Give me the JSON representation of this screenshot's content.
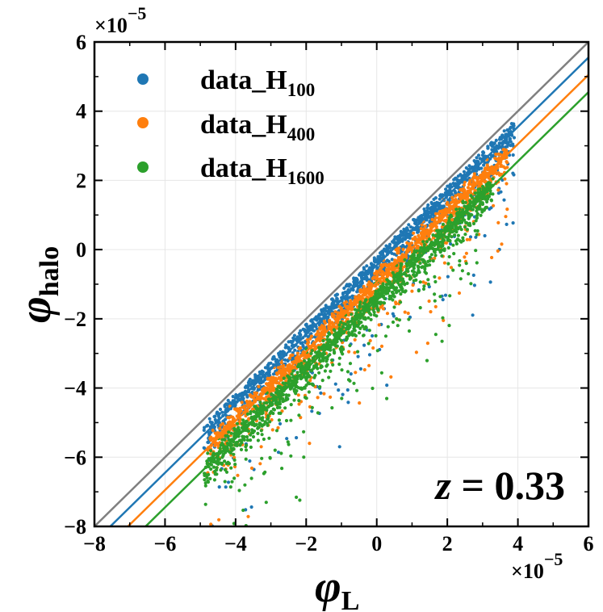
{
  "chart_data": {
    "type": "scatter",
    "title": "",
    "xlabel": {
      "symbol": "φ",
      "sub": "L"
    },
    "ylabel": {
      "symbol": "φ",
      "sub": "halo"
    },
    "xlim": [
      -8,
      6
    ],
    "ylim": [
      -8,
      6
    ],
    "xticks": [
      -8,
      -6,
      -4,
      -2,
      0,
      2,
      4,
      6
    ],
    "yticks": [
      -8,
      -6,
      -4,
      -2,
      0,
      2,
      4,
      6
    ],
    "xtick_labels": [
      "−8",
      "−6",
      "−4",
      "−2",
      "0",
      "2",
      "4",
      "6"
    ],
    "ytick_labels": [
      "−8",
      "−6",
      "−4",
      "−2",
      "0",
      "2",
      "4",
      "6"
    ],
    "x_scale_label": {
      "base": "×10",
      "exp": "−5"
    },
    "y_scale_label": {
      "base": "×10",
      "exp": "−5"
    },
    "grid": true,
    "legend_position": "top-left",
    "annotation": {
      "var": "z",
      "eq": " = ",
      "value": "0.33"
    },
    "reference_line": {
      "name": "identity",
      "slope": 1.0,
      "intercept": 0.0,
      "color": "#808080"
    },
    "series": [
      {
        "name": "data_H",
        "sub": "100",
        "color": "#1f77b4",
        "fit_slope": 1.0,
        "fit_intercept": -0.45,
        "x_range": [
          -4.9,
          3.9
        ],
        "scatter_width": 0.9,
        "n_points": 1400
      },
      {
        "name": "data_H",
        "sub": "400",
        "color": "#ff7f0e",
        "fit_slope": 1.0,
        "fit_intercept": -0.95,
        "x_range": [
          -4.8,
          3.7
        ],
        "scatter_width": 0.8,
        "n_points": 1400
      },
      {
        "name": "data_H",
        "sub": "1600",
        "color": "#2ca02c",
        "fit_slope": 1.0,
        "fit_intercept": -1.45,
        "x_range": [
          -4.9,
          3.3
        ],
        "scatter_width": 0.8,
        "n_points": 1400
      }
    ]
  }
}
